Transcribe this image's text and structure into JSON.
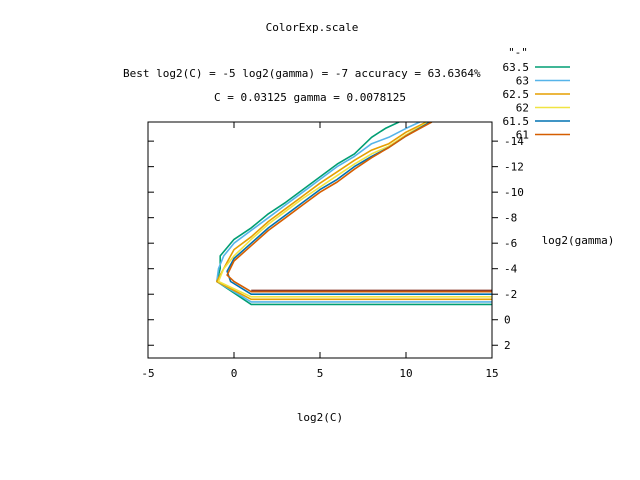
{
  "chart_data": {
    "type": "line",
    "title": "ColorExp.scale",
    "subtitle_line1": "Best log2(C) = -5  log2(gamma) = -7  accuracy = 63.6364%",
    "subtitle_line2": "C = 0.03125  gamma = 0.0078125",
    "xlabel": "log2(C)",
    "ylabel": "log2(gamma)",
    "legend_title": "\"-\"",
    "xlim": [
      -5,
      15
    ],
    "ylim": [
      3,
      -15.5
    ],
    "xticks": [
      -5,
      0,
      5,
      10,
      15
    ],
    "yticks": [
      -14,
      -12,
      -10,
      -8,
      -6,
      -4,
      -2,
      0,
      2
    ],
    "ytick_labels": [
      "-14",
      "-12",
      "-10",
      "-8",
      "-6",
      "-4",
      "-2",
      "0",
      "2"
    ],
    "legend_position": "top-right",
    "grid": false,
    "series": [
      {
        "name": "63.5",
        "color": "#009e73",
        "x": [
          9.6,
          8.8,
          8.0,
          7.0,
          6.0,
          5.0,
          4.0,
          3.0,
          2.0,
          1.0,
          0.0,
          -0.8,
          -0.8,
          -1.0,
          1.0,
          15
        ],
        "y": [
          -15.5,
          -15.0,
          -14.3,
          -13.0,
          -12.2,
          -11.2,
          -10.2,
          -9.2,
          -8.3,
          -7.2,
          -6.3,
          -5.0,
          -4.0,
          -3.0,
          -1.2,
          -1.2
        ]
      },
      {
        "name": "63",
        "color": "#56b4e9",
        "x": [
          10.8,
          10.0,
          9.0,
          8.0,
          7.0,
          6.0,
          5.0,
          4.0,
          3.0,
          2.0,
          1.0,
          0.0,
          -0.6,
          -0.9,
          -1.0,
          1.0,
          15
        ],
        "y": [
          -15.5,
          -15.0,
          -14.3,
          -13.8,
          -12.8,
          -12.0,
          -11.0,
          -10.0,
          -9.0,
          -8.0,
          -7.0,
          -6.0,
          -5.0,
          -4.0,
          -3.0,
          -1.4,
          -1.4
        ]
      },
      {
        "name": "62.5",
        "color": "#e69f00",
        "x": [
          11.2,
          10.0,
          9.0,
          8.0,
          7.0,
          6.0,
          5.0,
          4.0,
          3.0,
          2.0,
          1.0,
          0.0,
          -0.4,
          -1.0,
          1.0,
          15
        ],
        "y": [
          -15.5,
          -14.7,
          -13.8,
          -13.3,
          -12.5,
          -11.6,
          -10.7,
          -9.7,
          -8.7,
          -7.7,
          -6.5,
          -5.5,
          -4.5,
          -3.0,
          -1.6,
          -1.6
        ]
      },
      {
        "name": "62",
        "color": "#f0e442",
        "x": [
          11.3,
          10.0,
          9.0,
          8.0,
          7.0,
          6.0,
          5.0,
          4.0,
          3.0,
          2.0,
          1.0,
          0.0,
          -0.6,
          -0.9,
          1.0,
          15
        ],
        "y": [
          -15.5,
          -14.5,
          -13.6,
          -13.0,
          -12.2,
          -11.3,
          -10.4,
          -9.5,
          -8.5,
          -7.5,
          -6.3,
          -5.0,
          -4.0,
          -3.0,
          -1.8,
          -1.8
        ]
      },
      {
        "name": "61.5",
        "color": "#0072b2",
        "x": [
          11.4,
          10.0,
          9.0,
          8.0,
          7.0,
          6.0,
          5.0,
          4.0,
          3.0,
          2.0,
          1.0,
          0.0,
          -0.4,
          -0.2,
          1.0,
          15
        ],
        "y": [
          -15.5,
          -14.4,
          -13.5,
          -12.8,
          -12.0,
          -11.0,
          -10.2,
          -9.2,
          -8.2,
          -7.2,
          -6.0,
          -4.8,
          -3.8,
          -3.0,
          -2.0,
          -2.0
        ]
      },
      {
        "name": "61",
        "color": "#d55e00",
        "x": [
          11.5,
          10.0,
          9.0,
          8.0,
          7.0,
          6.0,
          5.0,
          4.0,
          3.0,
          2.0,
          1.0,
          0.0,
          -0.4,
          0.0,
          1.0,
          15
        ],
        "y": [
          -15.5,
          -14.4,
          -13.5,
          -12.7,
          -11.8,
          -10.8,
          -10.0,
          -9.0,
          -8.0,
          -7.0,
          -5.8,
          -4.6,
          -3.5,
          -3.0,
          -2.2,
          -2.2
        ]
      },
      {
        "name": "",
        "color": "#8b3a2b",
        "x": [
          1.0,
          15
        ],
        "y": [
          -2.3,
          -2.3
        ]
      }
    ]
  }
}
